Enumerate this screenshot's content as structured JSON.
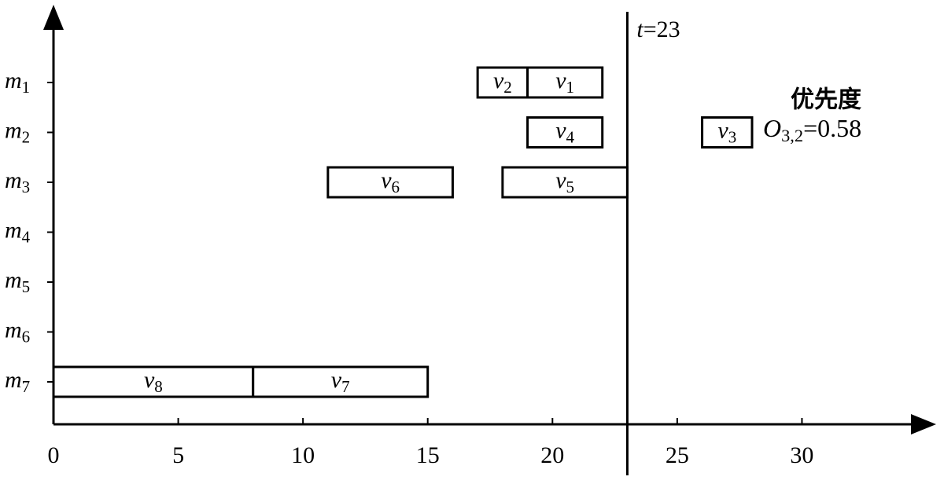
{
  "chart_data": {
    "type": "gantt",
    "categories": [
      "m1",
      "m2",
      "m3",
      "m4",
      "m5",
      "m6",
      "m7"
    ],
    "tasks": [
      {
        "name": "v2",
        "category": "m1",
        "start": 17,
        "end": 19
      },
      {
        "name": "v1",
        "category": "m1",
        "start": 19,
        "end": 22
      },
      {
        "name": "v4",
        "category": "m2",
        "start": 19,
        "end": 22
      },
      {
        "name": "v6",
        "category": "m3",
        "start": 11,
        "end": 16
      },
      {
        "name": "v5",
        "category": "m3",
        "start": 18,
        "end": 23
      },
      {
        "name": "v8",
        "category": "m7",
        "start": 0,
        "end": 8
      },
      {
        "name": "v7",
        "category": "m7",
        "start": 8,
        "end": 15
      },
      {
        "name": "v3",
        "category": "m2",
        "start": 26,
        "end": 28
      }
    ],
    "marker": {
      "value": 23,
      "label": "t=23"
    },
    "annotation": {
      "title": "优先度",
      "text": "O3,2=0.58"
    },
    "xlim": [
      0,
      35
    ],
    "xticks": [
      0,
      5,
      10,
      15,
      20,
      25,
      30
    ]
  }
}
